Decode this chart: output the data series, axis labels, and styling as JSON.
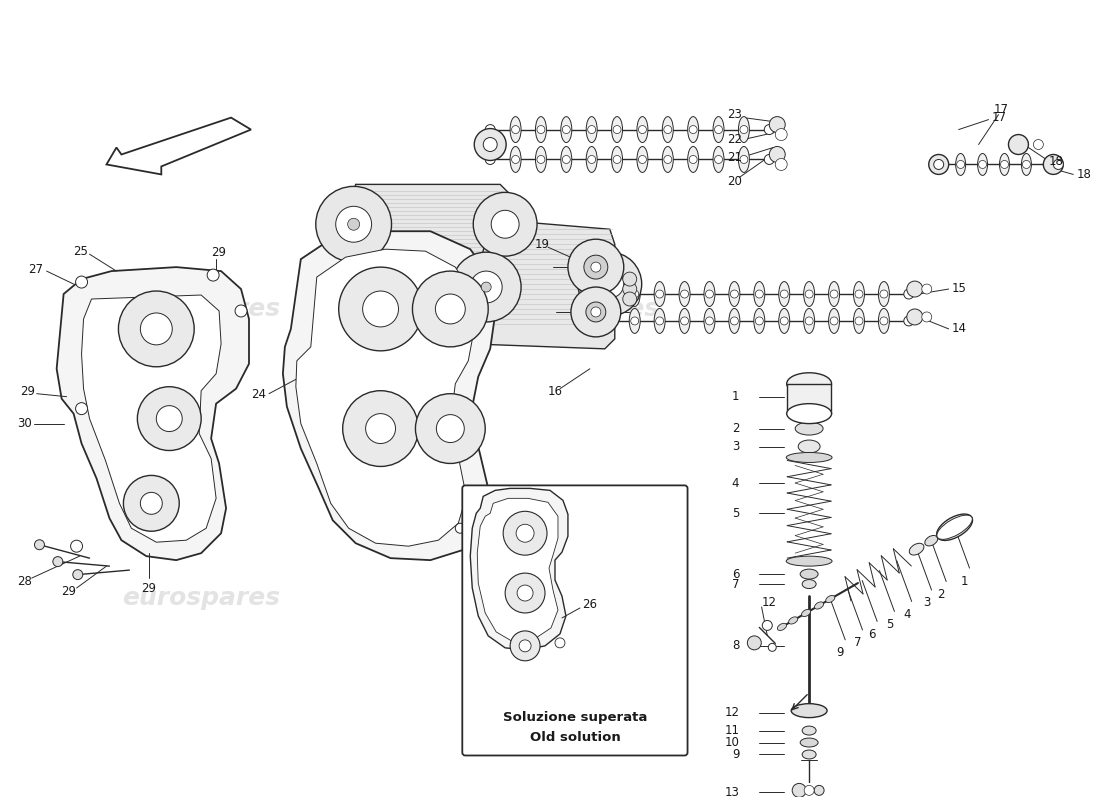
{
  "background_color": "#ffffff",
  "watermark_text": "eurospares",
  "watermark_color": "#c8c8c8",
  "line_color": "#2a2a2a",
  "caption_it": "Soluzione superata",
  "caption_en": "Old solution",
  "font_size_labels": 8.5,
  "font_size_caption_it": 9.5,
  "font_size_caption_en": 9.5,
  "font_size_watermark": 18
}
